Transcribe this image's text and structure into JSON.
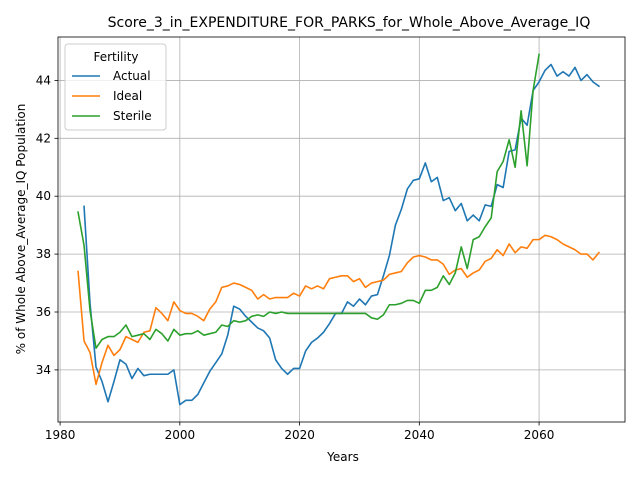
{
  "chart_data": {
    "type": "line",
    "title": "Score_3_in_EXPENDITURE_FOR_PARKS_for_Whole_Above_Average_IQ",
    "xlabel": "Years",
    "ylabel": "% of Whole Above_Average_IQ Population",
    "xlim": [
      1979.65,
      1974.35
    ],
    "ylim": [
      32.2,
      45.5
    ],
    "grid": true,
    "legend": {
      "title": "Fertility",
      "placement": "top-left"
    },
    "x_ticks": [
      1980,
      2000,
      2020,
      2040,
      2060
    ],
    "x_tick_labels": [
      "1980",
      "2000",
      "2020",
      "2040",
      "2060"
    ],
    "y_ticks": [
      34,
      36,
      38,
      40,
      42,
      44
    ],
    "y_tick_labels": [
      "34",
      "36",
      "38",
      "40",
      "42",
      "44"
    ],
    "x": [
      1983,
      1984,
      1985,
      1986,
      1987,
      1988,
      1989,
      1990,
      1991,
      1992,
      1993,
      1994,
      1995,
      1996,
      1997,
      1998,
      1999,
      2000,
      2001,
      2002,
      2003,
      2004,
      2005,
      2006,
      2007,
      2008,
      2009,
      2010,
      2011,
      2012,
      2013,
      2014,
      2015,
      2016,
      2017,
      2018,
      2019,
      2020,
      2021,
      2022,
      2023,
      2024,
      2025,
      2026,
      2027,
      2028,
      2029,
      2030,
      2031,
      2032,
      2033,
      2034,
      2035,
      2036,
      2037,
      2038,
      2039,
      2040,
      2041,
      2042,
      2043,
      2044,
      2045,
      2046,
      2047,
      2048,
      2049,
      2050,
      2051,
      2052,
      2053,
      2054,
      2055,
      2056,
      2057,
      2058,
      2059,
      2060,
      2061,
      2062,
      2063,
      2064,
      2065,
      2066,
      2067,
      2068,
      2069,
      2070
    ],
    "series": [
      {
        "name": "Actual",
        "color": "#1f77b4",
        "values": [
          null,
          39.65,
          36.3,
          34.1,
          33.6,
          32.9,
          33.6,
          34.35,
          34.2,
          33.7,
          34.05,
          33.8,
          33.85,
          33.85,
          33.85,
          33.85,
          34.0,
          32.8,
          32.95,
          32.95,
          33.15,
          33.55,
          33.95,
          34.25,
          34.55,
          35.2,
          36.2,
          36.1,
          35.85,
          35.65,
          35.45,
          35.35,
          35.1,
          34.35,
          34.05,
          33.85,
          34.05,
          34.05,
          34.65,
          34.95,
          35.1,
          35.3,
          35.6,
          35.95,
          35.95,
          36.35,
          36.2,
          36.45,
          36.25,
          36.55,
          36.6,
          37.25,
          37.95,
          39.0,
          39.55,
          40.25,
          40.55,
          40.6,
          41.15,
          40.5,
          40.65,
          39.85,
          39.95,
          39.5,
          39.75,
          39.15,
          39.35,
          39.15,
          39.7,
          39.65,
          40.4,
          40.3,
          41.55,
          41.6,
          42.7,
          42.45,
          43.65,
          43.95,
          44.35,
          44.55,
          44.15,
          44.3,
          44.15,
          44.45,
          44.0,
          44.2,
          43.95,
          43.8
        ]
      },
      {
        "name": "Ideal",
        "color": "#ff7f0e",
        "values": [
          37.4,
          35.0,
          34.6,
          33.5,
          34.25,
          34.85,
          34.5,
          34.7,
          35.15,
          35.05,
          34.95,
          35.3,
          35.35,
          36.15,
          35.95,
          35.7,
          36.35,
          36.05,
          35.95,
          35.95,
          35.85,
          35.7,
          36.1,
          36.35,
          36.85,
          36.9,
          37.0,
          36.95,
          36.85,
          36.75,
          36.45,
          36.6,
          36.45,
          36.5,
          36.5,
          36.5,
          36.65,
          36.55,
          36.9,
          36.8,
          36.9,
          36.8,
          37.15,
          37.2,
          37.25,
          37.25,
          37.05,
          37.15,
          36.85,
          37.0,
          37.05,
          37.1,
          37.3,
          37.35,
          37.4,
          37.7,
          37.9,
          37.95,
          37.9,
          37.8,
          37.8,
          37.65,
          37.3,
          37.45,
          37.5,
          37.2,
          37.35,
          37.45,
          37.75,
          37.85,
          38.15,
          37.95,
          38.35,
          38.05,
          38.25,
          38.2,
          38.5,
          38.5,
          38.65,
          38.6,
          38.5,
          38.35,
          38.25,
          38.15,
          38.0,
          38.0,
          37.8,
          38.05
        ]
      },
      {
        "name": "Sterile",
        "color": "#2ca02c",
        "values": [
          39.45,
          38.3,
          36.05,
          34.75,
          35.05,
          35.15,
          35.15,
          35.3,
          35.55,
          35.15,
          35.2,
          35.25,
          35.05,
          35.4,
          35.25,
          35.0,
          35.4,
          35.2,
          35.25,
          35.25,
          35.35,
          35.2,
          35.25,
          35.3,
          35.55,
          35.5,
          35.7,
          35.65,
          35.7,
          35.85,
          35.9,
          35.85,
          36.0,
          35.95,
          36.0,
          35.95,
          35.95,
          35.95,
          35.95,
          35.95,
          35.95,
          35.95,
          35.95,
          35.95,
          35.95,
          35.95,
          35.95,
          35.95,
          35.95,
          35.8,
          35.75,
          35.9,
          36.25,
          36.25,
          36.3,
          36.4,
          36.4,
          36.3,
          36.75,
          36.75,
          36.85,
          37.25,
          36.95,
          37.35,
          38.25,
          37.5,
          38.5,
          38.6,
          38.95,
          39.25,
          40.85,
          41.2,
          41.95,
          41.0,
          42.95,
          41.05,
          43.65,
          44.9,
          null,
          null,
          null,
          null,
          null,
          null,
          null,
          null,
          null,
          null
        ]
      }
    ]
  }
}
